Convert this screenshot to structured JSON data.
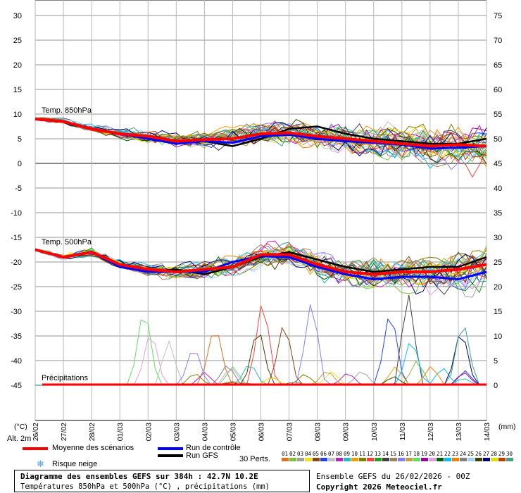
{
  "chart_data": {
    "type": "line",
    "left_axis_unit": "(°C)",
    "right_axis_unit": "(mm)",
    "left_ticks": [
      30,
      25,
      20,
      15,
      10,
      5,
      0,
      -5,
      -10,
      -15,
      -20,
      -25,
      -30,
      -35,
      -40,
      -45
    ],
    "right_ticks": [
      75,
      70,
      65,
      60,
      55,
      50,
      45,
      40,
      35,
      30,
      25,
      20,
      15,
      10,
      5,
      0
    ],
    "ylim_left": [
      -45,
      30
    ],
    "x_labels": [
      "26/02",
      "27/02",
      "28/02",
      "01/03",
      "02/03",
      "03/03",
      "04/03",
      "05/03",
      "06/03",
      "07/03",
      "08/03",
      "09/03",
      "10/03",
      "11/03",
      "12/03",
      "13/03",
      "14/03"
    ],
    "altitude_label": "Alt. 2m",
    "section_labels": {
      "t850": "Temp. 850hPa",
      "t500": "Temp. 500hPa",
      "precip": "Précipitations"
    },
    "mean_850": [
      9,
      8.5,
      7,
      6,
      5.5,
      4.5,
      4.8,
      5,
      6,
      6.2,
      5.5,
      5,
      4.5,
      4,
      3.5,
      3.8,
      3.5
    ],
    "mean_500": [
      -17.5,
      -19,
      -18,
      -20.5,
      -21.5,
      -22,
      -21.5,
      -21,
      -18.5,
      -18.5,
      -20.5,
      -22,
      -22.5,
      -22,
      -22,
      -21.5,
      -20.5
    ],
    "control_850": [
      9,
      8.5,
      7,
      6,
      5,
      4,
      4.5,
      4.2,
      5.5,
      5.8,
      5,
      4.5,
      4.2,
      3.8,
      3,
      3.2,
      3.5
    ],
    "control_500": [
      -17.5,
      -19,
      -18,
      -21,
      -22,
      -22,
      -22,
      -20,
      -18.8,
      -19,
      -21,
      -22.5,
      -23.5,
      -23,
      -23,
      -23.5,
      -22
    ],
    "gfs_850": [
      9,
      8.5,
      7,
      6,
      5,
      4.5,
      4.5,
      3.5,
      5,
      7,
      7.5,
      6,
      5,
      4.5,
      4,
      4,
      5
    ],
    "gfs_500": [
      -17.5,
      -19,
      -18,
      -21,
      -22,
      -21.5,
      -22.5,
      -21,
      -19,
      -18,
      -19.5,
      -21,
      -22,
      -21.5,
      -21,
      -21,
      -19
    ],
    "legend": {
      "mean": "Moyenne des scénarios",
      "control": "Run de contrôle",
      "gfs": "Run GFS",
      "snow": "Risque neige",
      "perts": "30 Perts."
    },
    "pert_ids": [
      "01",
      "02",
      "03",
      "04",
      "05",
      "06",
      "07",
      "08",
      "09",
      "10",
      "11",
      "12",
      "13",
      "14",
      "15",
      "16",
      "17",
      "18",
      "19",
      "20",
      "21",
      "22",
      "23",
      "24",
      "25",
      "26",
      "27",
      "28",
      "29",
      "30"
    ],
    "pert_colors": [
      "#e07020",
      "#80c040",
      "#a0a0a0",
      "#f0e020",
      "#8b4513",
      "#2040ff",
      "#c0c0c0",
      "#c020c0",
      "#20c0c0",
      "#f0a000",
      "#808000",
      "#ff4040",
      "#20a020",
      "#404040",
      "#a08060",
      "#8080ff",
      "#c0a040",
      "#60e060",
      "#a000a0",
      "#e0a0e0",
      "#006000",
      "#00c0ff",
      "#ff8000",
      "#808080",
      "#a0d0ff",
      "#404000",
      "#000080",
      "#e0e000",
      "#c04000",
      "#40a080"
    ],
    "colors": {
      "mean": "#ff0000",
      "control": "#0000ff",
      "gfs": "#000000"
    }
  },
  "footer": {
    "title": "Diagramme des ensembles GEFS sur 384h : 42.7N 10.2E",
    "subtitle": "Températures 850hPa et 500hPa (°C) , précipitations (mm)",
    "run": "Ensemble GEFS du 26/02/2026 - 00Z",
    "copyright": "Copyright 2026 Meteociel.fr"
  }
}
